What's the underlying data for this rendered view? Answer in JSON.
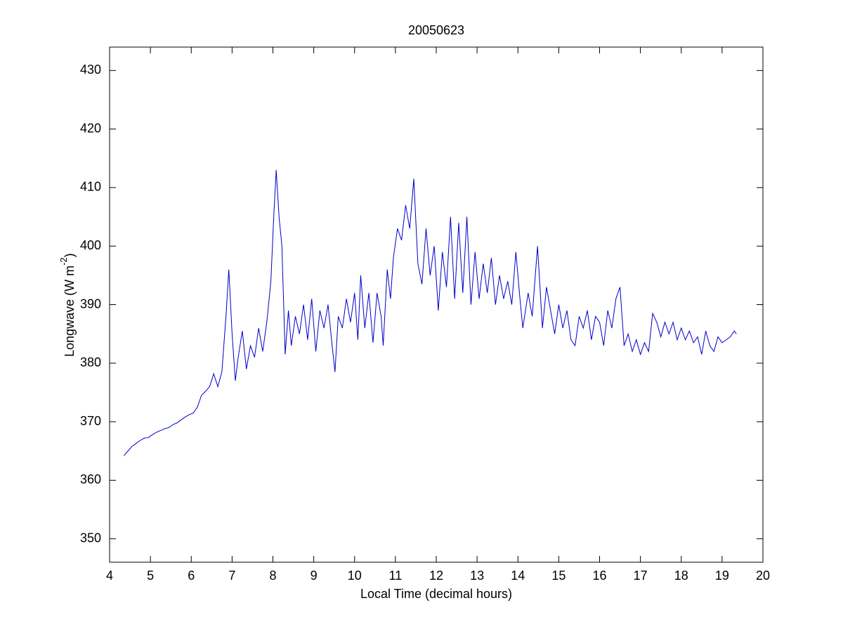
{
  "chart_data": {
    "type": "line",
    "title": "20050623",
    "x_label": "Local Time (decimal hours)",
    "y_label": {
      "text": "Longwave (W m",
      "superscript": "-2",
      "suffix": ")"
    },
    "xlim": [
      4,
      20
    ],
    "xticks": [
      4,
      5,
      6,
      7,
      8,
      9,
      10,
      11,
      12,
      13,
      14,
      15,
      16,
      17,
      18,
      19,
      20
    ],
    "ylim": [
      346,
      434
    ],
    "yticks": [
      350,
      360,
      370,
      380,
      390,
      400,
      410,
      420,
      430
    ],
    "grid": false,
    "box": true,
    "series": [
      {
        "color": "#0000c8",
        "x": [
          4.35,
          4.45,
          4.55,
          4.65,
          4.75,
          4.85,
          4.95,
          5.05,
          5.15,
          5.25,
          5.35,
          5.45,
          5.55,
          5.65,
          5.75,
          5.85,
          5.95,
          6.05,
          6.15,
          6.25,
          6.35,
          6.45,
          6.55,
          6.65,
          6.75,
          6.85,
          6.92,
          7.0,
          7.08,
          7.15,
          7.25,
          7.35,
          7.45,
          7.55,
          7.65,
          7.75,
          7.85,
          7.95,
          8.02,
          8.08,
          8.15,
          8.22,
          8.3,
          8.38,
          8.45,
          8.55,
          8.65,
          8.75,
          8.85,
          8.95,
          9.05,
          9.15,
          9.25,
          9.35,
          9.45,
          9.52,
          9.6,
          9.7,
          9.8,
          9.9,
          10.0,
          10.08,
          10.15,
          10.25,
          10.35,
          10.45,
          10.55,
          10.65,
          10.7,
          10.8,
          10.88,
          10.95,
          11.05,
          11.15,
          11.25,
          11.35,
          11.45,
          11.55,
          11.65,
          11.75,
          11.85,
          11.95,
          12.05,
          12.15,
          12.25,
          12.35,
          12.45,
          12.55,
          12.65,
          12.75,
          12.85,
          12.95,
          13.05,
          13.15,
          13.25,
          13.35,
          13.45,
          13.55,
          13.65,
          13.75,
          13.85,
          13.95,
          14.05,
          14.12,
          14.25,
          14.35,
          14.48,
          14.6,
          14.7,
          14.8,
          14.9,
          15.0,
          15.1,
          15.2,
          15.3,
          15.4,
          15.5,
          15.6,
          15.7,
          15.8,
          15.9,
          16.0,
          16.1,
          16.2,
          16.3,
          16.4,
          16.5,
          16.6,
          16.7,
          16.8,
          16.9,
          17.0,
          17.1,
          17.2,
          17.3,
          17.4,
          17.5,
          17.6,
          17.7,
          17.8,
          17.9,
          18.0,
          18.1,
          18.2,
          18.3,
          18.4,
          18.5,
          18.6,
          18.7,
          18.8,
          18.9,
          19.0,
          19.1,
          19.2,
          19.3,
          19.35
        ],
        "values": [
          364.2,
          365,
          365.8,
          366.3,
          366.8,
          367.2,
          367.3,
          367.8,
          368.2,
          368.5,
          368.8,
          369,
          369.5,
          369.8,
          370.3,
          370.8,
          371.2,
          371.5,
          372.5,
          374.5,
          375.2,
          376,
          378.2,
          376,
          378.5,
          388,
          396,
          385,
          377,
          381,
          385.5,
          379,
          383,
          381,
          386,
          382,
          387,
          394,
          405,
          413,
          405,
          400,
          381.5,
          389,
          383,
          388,
          385,
          390,
          384,
          391,
          382,
          389,
          386,
          390,
          383,
          378.5,
          388,
          386,
          391,
          387,
          392,
          384,
          395,
          386,
          392,
          383.5,
          392,
          388,
          383,
          396,
          391,
          398,
          403,
          401,
          407,
          403,
          411.5,
          397,
          393.5,
          403,
          395,
          400,
          389,
          399,
          393,
          405,
          391,
          404,
          392,
          405,
          390,
          399,
          391,
          397,
          392,
          398,
          390,
          395,
          391,
          394,
          390,
          399,
          391,
          386,
          392,
          388,
          400,
          386,
          393,
          389,
          385,
          390,
          386,
          389,
          384,
          383,
          388,
          386,
          389,
          384,
          388,
          387,
          383,
          389,
          386,
          391,
          393,
          383,
          385,
          382,
          384,
          381.5,
          383.5,
          382,
          388.5,
          387,
          384.5,
          387,
          385,
          387,
          384,
          386,
          384,
          385.5,
          383.5,
          384.5,
          381.5,
          385.5,
          383,
          382,
          384.5,
          383.5,
          384,
          384.5,
          385.5,
          385
        ]
      }
    ]
  }
}
